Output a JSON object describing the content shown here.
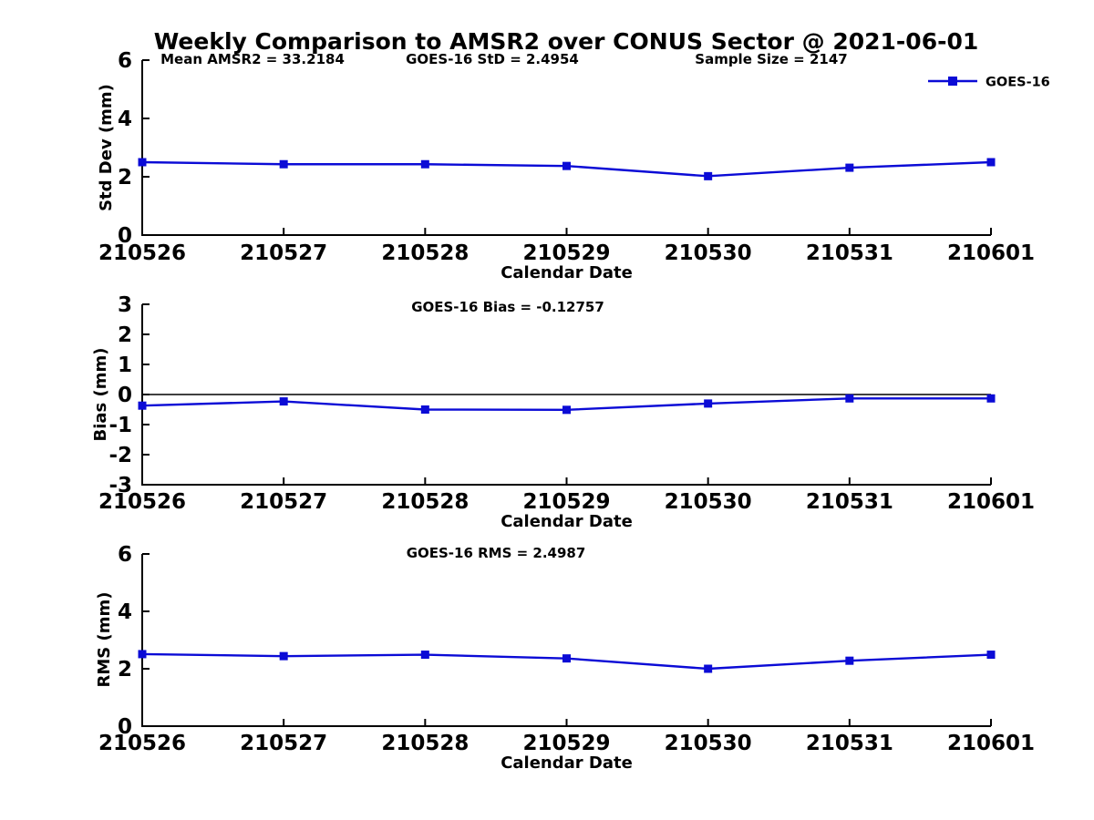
{
  "title": "Weekly Comparison to AMSR2 over CONUS Sector @ 2021-06-01",
  "accent_color": "#0b0bd6",
  "axis_color": "#000000",
  "chart_data": [
    {
      "id": "stddev",
      "type": "line",
      "ylabel": "Std Dev (mm)",
      "xlabel": "Calendar Date",
      "categories": [
        "210526",
        "210527",
        "210528",
        "210529",
        "210530",
        "210531",
        "210601"
      ],
      "series": [
        {
          "name": "GOES-16",
          "values": [
            2.5,
            2.43,
            2.43,
            2.37,
            2.02,
            2.31,
            2.5
          ]
        }
      ],
      "ylim": [
        0,
        6
      ],
      "yticks": [
        0,
        2,
        4,
        6
      ],
      "grid": false,
      "zero_line": false,
      "legend": {
        "label": "GOES-16",
        "position": "top-right"
      },
      "annotations": [
        {
          "text": "Mean AMSR2 = 33.2184"
        },
        {
          "text": "GOES-16 StD = 2.4954"
        },
        {
          "text": "Sample Size = 2147"
        }
      ]
    },
    {
      "id": "bias",
      "type": "line",
      "ylabel": "Bias (mm)",
      "xlabel": "Calendar Date",
      "categories": [
        "210526",
        "210527",
        "210528",
        "210529",
        "210530",
        "210531",
        "210601"
      ],
      "series": [
        {
          "name": "GOES-16",
          "values": [
            -0.37,
            -0.23,
            -0.5,
            -0.51,
            -0.3,
            -0.13,
            -0.13
          ]
        }
      ],
      "ylim": [
        -3,
        3
      ],
      "yticks": [
        -3,
        -2,
        -1,
        0,
        1,
        2,
        3
      ],
      "grid": false,
      "zero_line": true,
      "legend": null,
      "annotations": [
        {
          "text": "GOES-16 Bias  = -0.12757"
        }
      ]
    },
    {
      "id": "rms",
      "type": "line",
      "ylabel": "RMS (mm)",
      "xlabel": "Calendar Date",
      "categories": [
        "210526",
        "210527",
        "210528",
        "210529",
        "210530",
        "210531",
        "210601"
      ],
      "series": [
        {
          "name": "GOES-16",
          "values": [
            2.51,
            2.44,
            2.49,
            2.36,
            2.0,
            2.28,
            2.49
          ]
        }
      ],
      "ylim": [
        0,
        6
      ],
      "yticks": [
        0,
        2,
        4,
        6
      ],
      "grid": false,
      "zero_line": false,
      "legend": null,
      "annotations": [
        {
          "text": "GOES-16 RMS = 2.4987"
        }
      ]
    }
  ]
}
